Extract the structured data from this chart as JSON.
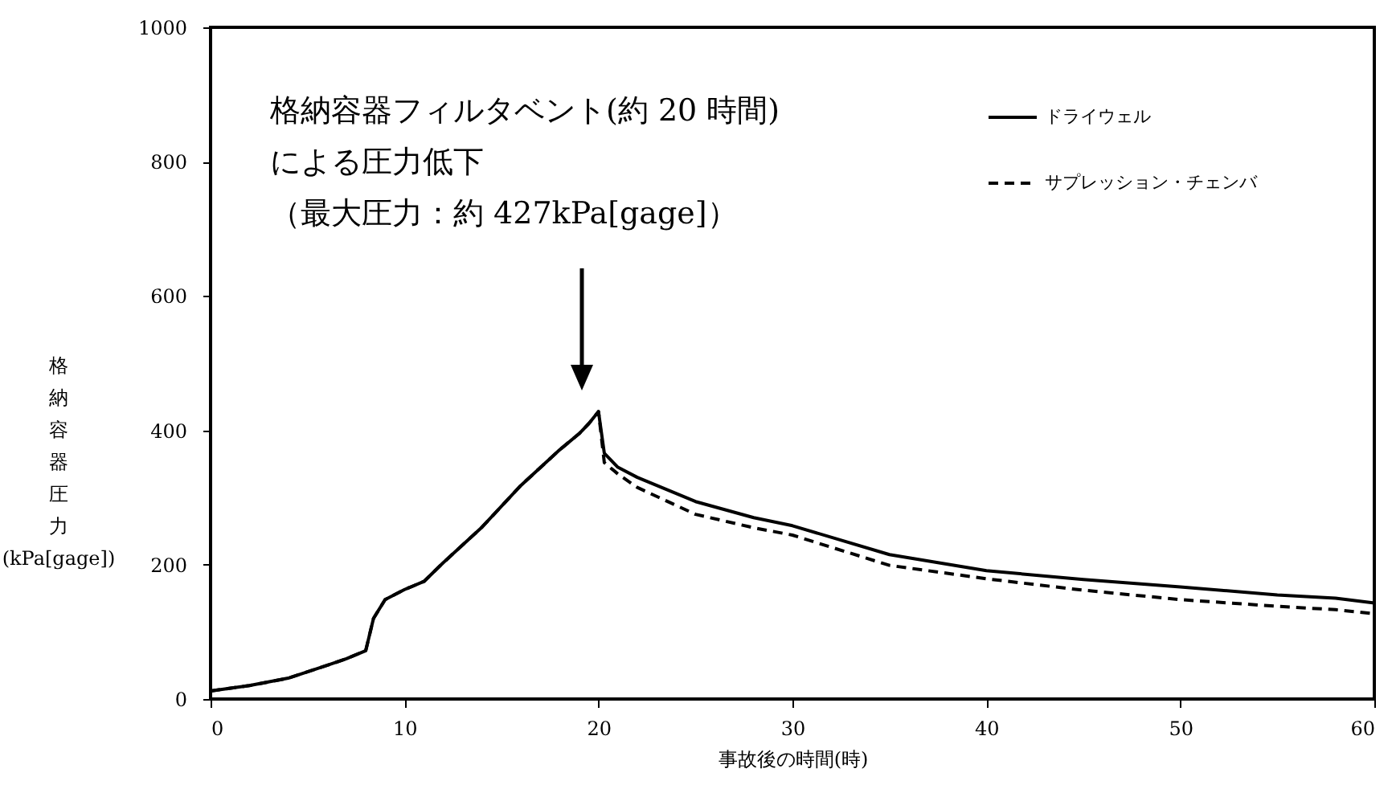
{
  "chart_data": {
    "type": "line",
    "xlabel": "事故後の時間(時)",
    "ylabel": "格納容器圧力 (kPa[gage])",
    "xlim": [
      0,
      60
    ],
    "xticks": [
      0,
      10,
      20,
      30,
      40,
      50,
      60
    ],
    "ylim": [
      0,
      1000
    ],
    "yticks": [
      0,
      200,
      400,
      600,
      800,
      1000
    ],
    "grid": false,
    "legend": "top right",
    "annotations": [
      "格納容器フィルタベント(約 20 時間)",
      "による圧力低下",
      "（最大圧力：約 427kPa[gage]）"
    ],
    "series": [
      {
        "name": "ドライウェル",
        "color": "#000000",
        "line_style": "solid",
        "x": [
          0,
          2,
          4,
          6,
          7,
          8,
          8.4,
          9,
          10,
          11,
          12,
          14,
          16,
          18,
          19,
          19.5,
          20,
          20.3,
          21,
          22,
          25,
          28,
          30,
          35,
          40,
          45,
          50,
          55,
          58,
          60
        ],
        "values": [
          12,
          20,
          31,
          50,
          60,
          72,
          120,
          148,
          163,
          175,
          203,
          256,
          318,
          371,
          395,
          410,
          428,
          366,
          345,
          330,
          294,
          270,
          258,
          215,
          191,
          178,
          167,
          155,
          150,
          143
        ]
      },
      {
        "name": "サプレッション・チェンバ",
        "color": "#000000",
        "line_style": "dashed",
        "x": [
          0,
          2,
          4,
          6,
          7,
          8,
          8.4,
          9,
          10,
          11,
          12,
          14,
          16,
          18,
          19,
          19.5,
          20,
          20.3,
          21,
          22,
          25,
          28,
          30,
          35,
          40,
          45,
          50,
          55,
          58,
          60
        ],
        "values": [
          12,
          20,
          31,
          50,
          60,
          72,
          120,
          148,
          163,
          175,
          203,
          256,
          318,
          371,
          395,
          410,
          428,
          352,
          335,
          315,
          275,
          255,
          244,
          199,
          179,
          162,
          148,
          138,
          133,
          127
        ]
      }
    ]
  }
}
